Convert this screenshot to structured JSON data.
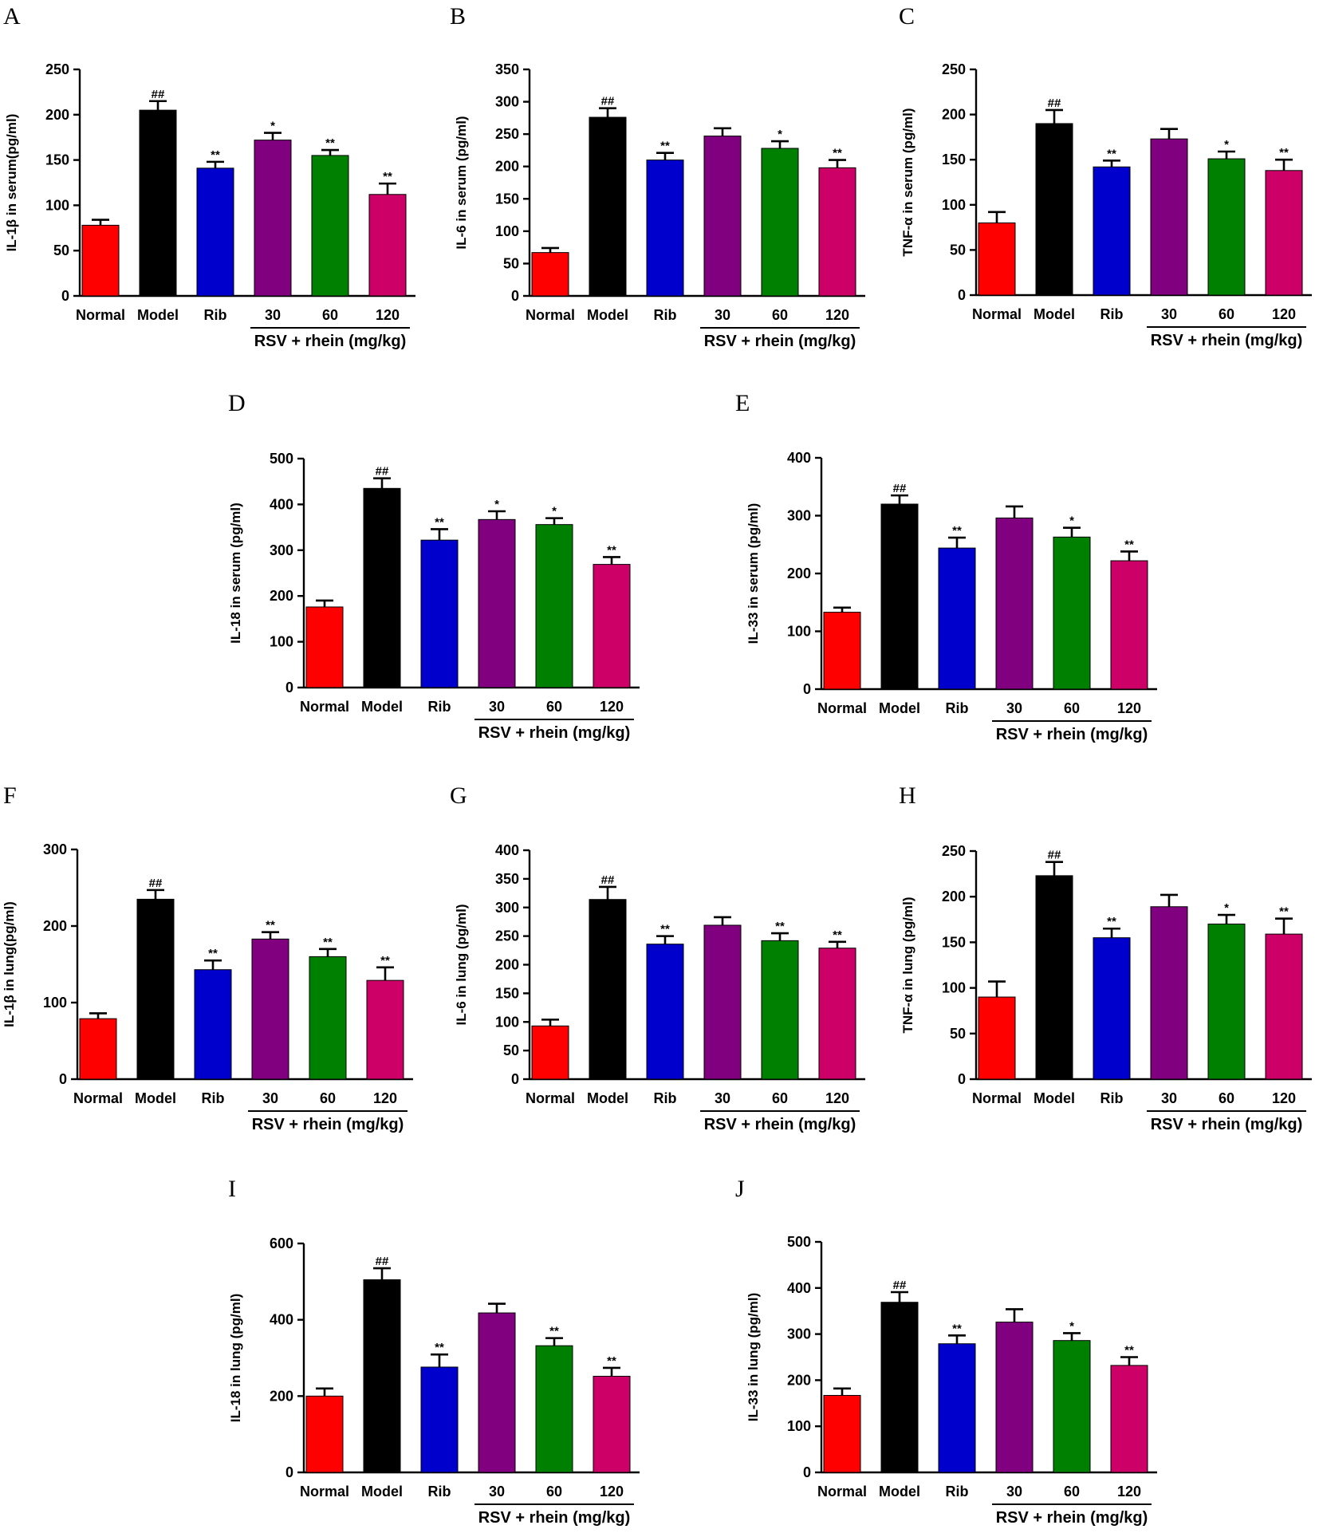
{
  "figure": {
    "group_label": "RSV + rhein (mg/kg)"
  },
  "colors": [
    "#ff0000",
    "#000000",
    "#0000cc",
    "#800080",
    "#008000",
    "#cc0066"
  ],
  "chart_data": [
    {
      "panel": "A",
      "type": "bar",
      "ylabel": "IL-1β in serum(pg/ml)",
      "categories": [
        "Normal",
        "Model",
        "Rib",
        "30",
        "60",
        "120"
      ],
      "ylim": [
        0,
        250
      ],
      "yticks": [
        0,
        50,
        100,
        150,
        200,
        250
      ],
      "values": [
        78,
        205,
        141,
        172,
        155,
        112
      ],
      "errors": [
        6,
        10,
        7,
        8,
        6,
        12
      ],
      "significance": [
        "",
        "##",
        "**",
        "*",
        "**",
        "**"
      ]
    },
    {
      "panel": "B",
      "type": "bar",
      "ylabel": "IL-6 in serum (pg/ml)",
      "categories": [
        "Normal",
        "Model",
        "Rib",
        "30",
        "60",
        "120"
      ],
      "ylim": [
        0,
        350
      ],
      "yticks": [
        0,
        50,
        100,
        150,
        200,
        250,
        300,
        350
      ],
      "values": [
        67,
        276,
        210,
        247,
        228,
        198
      ],
      "errors": [
        7,
        14,
        11,
        12,
        11,
        12
      ],
      "significance": [
        "",
        "##",
        "**",
        "",
        "*",
        "**"
      ]
    },
    {
      "panel": "C",
      "type": "bar",
      "ylabel": "TNF-α in serum (pg/ml)",
      "categories": [
        "Normal",
        "Model",
        "Rib",
        "30",
        "60",
        "120"
      ],
      "ylim": [
        0,
        250
      ],
      "yticks": [
        0,
        50,
        100,
        150,
        200,
        250
      ],
      "values": [
        80,
        190,
        142,
        173,
        151,
        138
      ],
      "errors": [
        12,
        15,
        7,
        11,
        8,
        12
      ],
      "significance": [
        "",
        "##",
        "**",
        "",
        "*",
        "**"
      ]
    },
    {
      "panel": "D",
      "type": "bar",
      "ylabel": "IL-18 in serum (pg/ml)",
      "categories": [
        "Normal",
        "Model",
        "Rib",
        "30",
        "60",
        "120"
      ],
      "ylim": [
        0,
        500
      ],
      "yticks": [
        0,
        100,
        200,
        300,
        400,
        500
      ],
      "values": [
        176,
        435,
        322,
        367,
        356,
        269
      ],
      "errors": [
        14,
        22,
        24,
        18,
        14,
        16
      ],
      "significance": [
        "",
        "##",
        "**",
        "*",
        "*",
        "**"
      ]
    },
    {
      "panel": "E",
      "type": "bar",
      "ylabel": "IL-33 in serum (pg/ml)",
      "categories": [
        "Normal",
        "Model",
        "Rib",
        "30",
        "60",
        "120"
      ],
      "ylim": [
        0,
        400
      ],
      "yticks": [
        0,
        100,
        200,
        300,
        400
      ],
      "values": [
        133,
        320,
        244,
        296,
        263,
        222
      ],
      "errors": [
        8,
        15,
        18,
        20,
        16,
        16
      ],
      "significance": [
        "",
        "##",
        "**",
        "",
        "*",
        "**"
      ]
    },
    {
      "panel": "F",
      "type": "bar",
      "ylabel": "IL-1β in lung(pg/ml)",
      "categories": [
        "Normal",
        "Model",
        "Rib",
        "30",
        "60",
        "120"
      ],
      "ylim": [
        0,
        300
      ],
      "yticks": [
        0,
        100,
        200,
        300
      ],
      "values": [
        79,
        235,
        143,
        183,
        160,
        129
      ],
      "errors": [
        7,
        12,
        12,
        9,
        10,
        17
      ],
      "significance": [
        "",
        "##",
        "**",
        "**",
        "**",
        "**"
      ]
    },
    {
      "panel": "G",
      "type": "bar",
      "ylabel": "IL-6 in lung (pg/ml)",
      "categories": [
        "Normal",
        "Model",
        "Rib",
        "30",
        "60",
        "120"
      ],
      "ylim": [
        0,
        400
      ],
      "yticks": [
        0,
        50,
        100,
        150,
        200,
        250,
        300,
        350,
        400
      ],
      "values": [
        93,
        314,
        236,
        269,
        242,
        229
      ],
      "errors": [
        11,
        22,
        14,
        14,
        13,
        11
      ],
      "significance": [
        "",
        "##",
        "**",
        "",
        "**",
        "**"
      ]
    },
    {
      "panel": "H",
      "type": "bar",
      "ylabel": "TNF-α in lung (pg/ml)",
      "categories": [
        "Normal",
        "Model",
        "Rib",
        "30",
        "60",
        "120"
      ],
      "ylim": [
        0,
        250
      ],
      "yticks": [
        0,
        50,
        100,
        150,
        200,
        250
      ],
      "values": [
        90,
        223,
        155,
        189,
        170,
        159
      ],
      "errors": [
        17,
        15,
        10,
        13,
        10,
        17
      ],
      "significance": [
        "",
        "##",
        "**",
        "",
        "*",
        "**"
      ]
    },
    {
      "panel": "I",
      "type": "bar",
      "ylabel": "IL-18 in lung (pg/ml)",
      "categories": [
        "Normal",
        "Model",
        "Rib",
        "30",
        "60",
        "120"
      ],
      "ylim": [
        0,
        600
      ],
      "yticks": [
        0,
        200,
        400,
        600
      ],
      "values": [
        200,
        505,
        276,
        418,
        332,
        252
      ],
      "errors": [
        20,
        30,
        33,
        24,
        20,
        22
      ],
      "significance": [
        "",
        "##",
        "**",
        "",
        "**",
        "**"
      ]
    },
    {
      "panel": "J",
      "type": "bar",
      "ylabel": "IL-33 in lung (pg/ml)",
      "categories": [
        "Normal",
        "Model",
        "Rib",
        "30",
        "60",
        "120"
      ],
      "ylim": [
        0,
        500
      ],
      "yticks": [
        0,
        100,
        200,
        300,
        400,
        500
      ],
      "values": [
        167,
        369,
        279,
        326,
        286,
        232
      ],
      "errors": [
        15,
        22,
        18,
        28,
        16,
        18
      ],
      "significance": [
        "",
        "##",
        "**",
        "",
        "*",
        "**"
      ]
    }
  ]
}
